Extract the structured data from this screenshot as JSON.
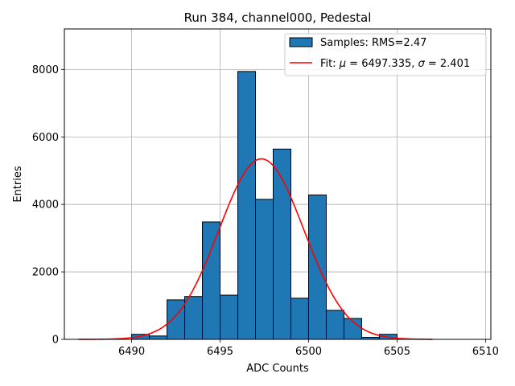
{
  "chart_data": {
    "type": "bar",
    "title": "Run 384, channel000, Pedestal",
    "xlabel": "ADC Counts",
    "ylabel": "Entries",
    "xlim": [
      6486.2,
      6510.3
    ],
    "ylim": [
      0,
      9200
    ],
    "xticks": [
      6490,
      6495,
      6500,
      6505,
      6510
    ],
    "yticks": [
      0,
      2000,
      4000,
      6000,
      8000
    ],
    "grid": true,
    "legend_position": "top-right",
    "bar_color": "#1f77b4",
    "fit_color": "#ff0000",
    "histogram": {
      "name": "Samples: RMS=2.47",
      "bins": [
        {
          "x0": 6490,
          "x1": 6491,
          "value": 150
        },
        {
          "x0": 6491,
          "x1": 6492,
          "value": 100
        },
        {
          "x0": 6492,
          "x1": 6493,
          "value": 1170
        },
        {
          "x0": 6493,
          "x1": 6494,
          "value": 1270
        },
        {
          "x0": 6494,
          "x1": 6495,
          "value": 3480
        },
        {
          "x0": 6495,
          "x1": 6496,
          "value": 1310
        },
        {
          "x0": 6496,
          "x1": 6497,
          "value": 7940
        },
        {
          "x0": 6497,
          "x1": 6498,
          "value": 4150
        },
        {
          "x0": 6498,
          "x1": 6499,
          "value": 5640
        },
        {
          "x0": 6499,
          "x1": 6500,
          "value": 1220
        },
        {
          "x0": 6500,
          "x1": 6501,
          "value": 4280
        },
        {
          "x0": 6501,
          "x1": 6502,
          "value": 860
        },
        {
          "x0": 6502,
          "x1": 6503,
          "value": 620
        },
        {
          "x0": 6503,
          "x1": 6504,
          "value": 60
        },
        {
          "x0": 6504,
          "x1": 6505,
          "value": 150
        }
      ]
    },
    "fit": {
      "name_prefix": "Fit: ",
      "mu_label": "μ",
      "mu_text": " = 6497.335, ",
      "sigma_label": "σ",
      "sigma_text": " = 2.401",
      "mu": 6497.335,
      "sigma": 2.401,
      "amplitude": 5350,
      "x_range": [
        6487,
        6507
      ]
    }
  }
}
